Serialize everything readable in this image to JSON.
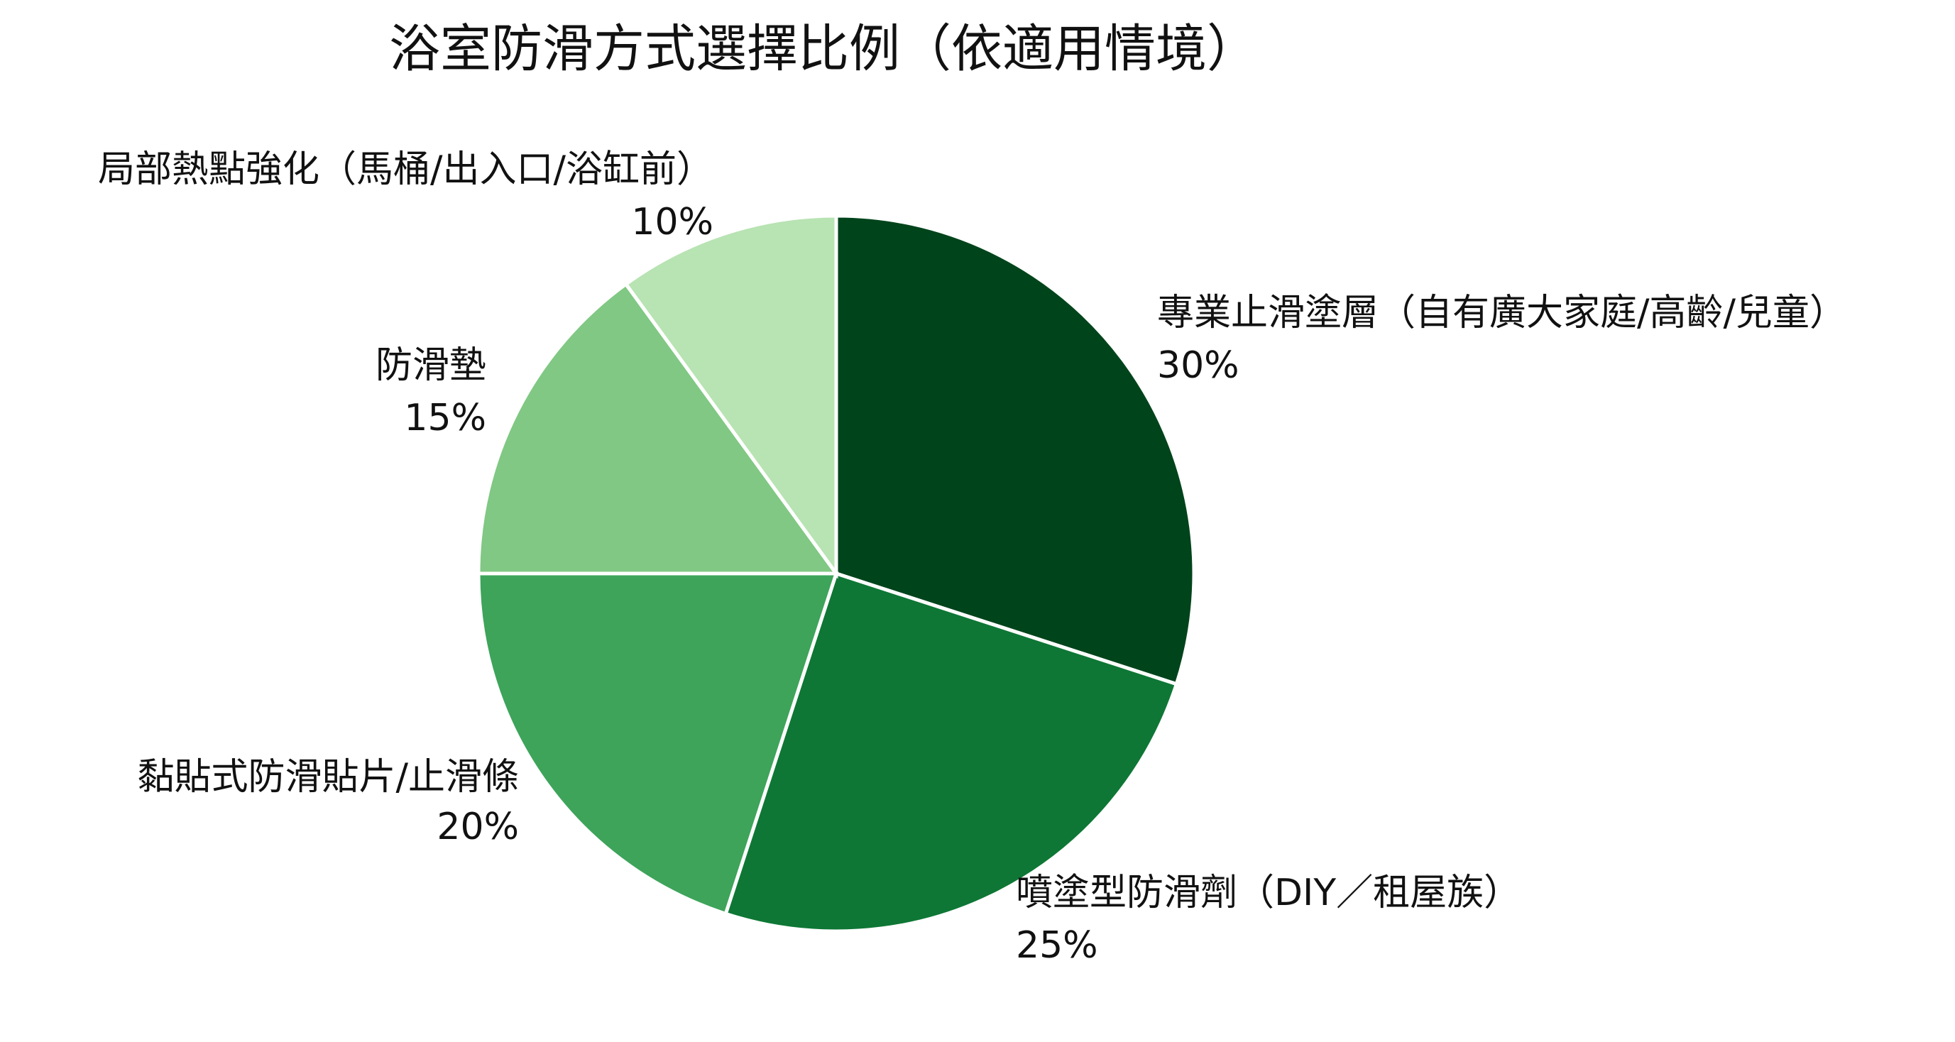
{
  "chart_data": {
    "type": "pie",
    "title": "浴室防滑方式選擇比例（依適用情境）",
    "categories": [
      "專業止滑塗層（自有廣大家庭/高齡/兒童）",
      "噴塗型防滑劑（DIY／租屋族）",
      "黏貼式防滑貼片/止滑條",
      "防滑墊",
      "局部熱點強化（馬桶/出入口/浴缸前）"
    ],
    "values": [
      30,
      25,
      20,
      15,
      10
    ],
    "value_labels": [
      "30%",
      "25%",
      "20%",
      "15%",
      "10%"
    ],
    "colors": [
      "#00441b",
      "#0e7735",
      "#3da45a",
      "#80c883",
      "#b8e3b3"
    ]
  }
}
